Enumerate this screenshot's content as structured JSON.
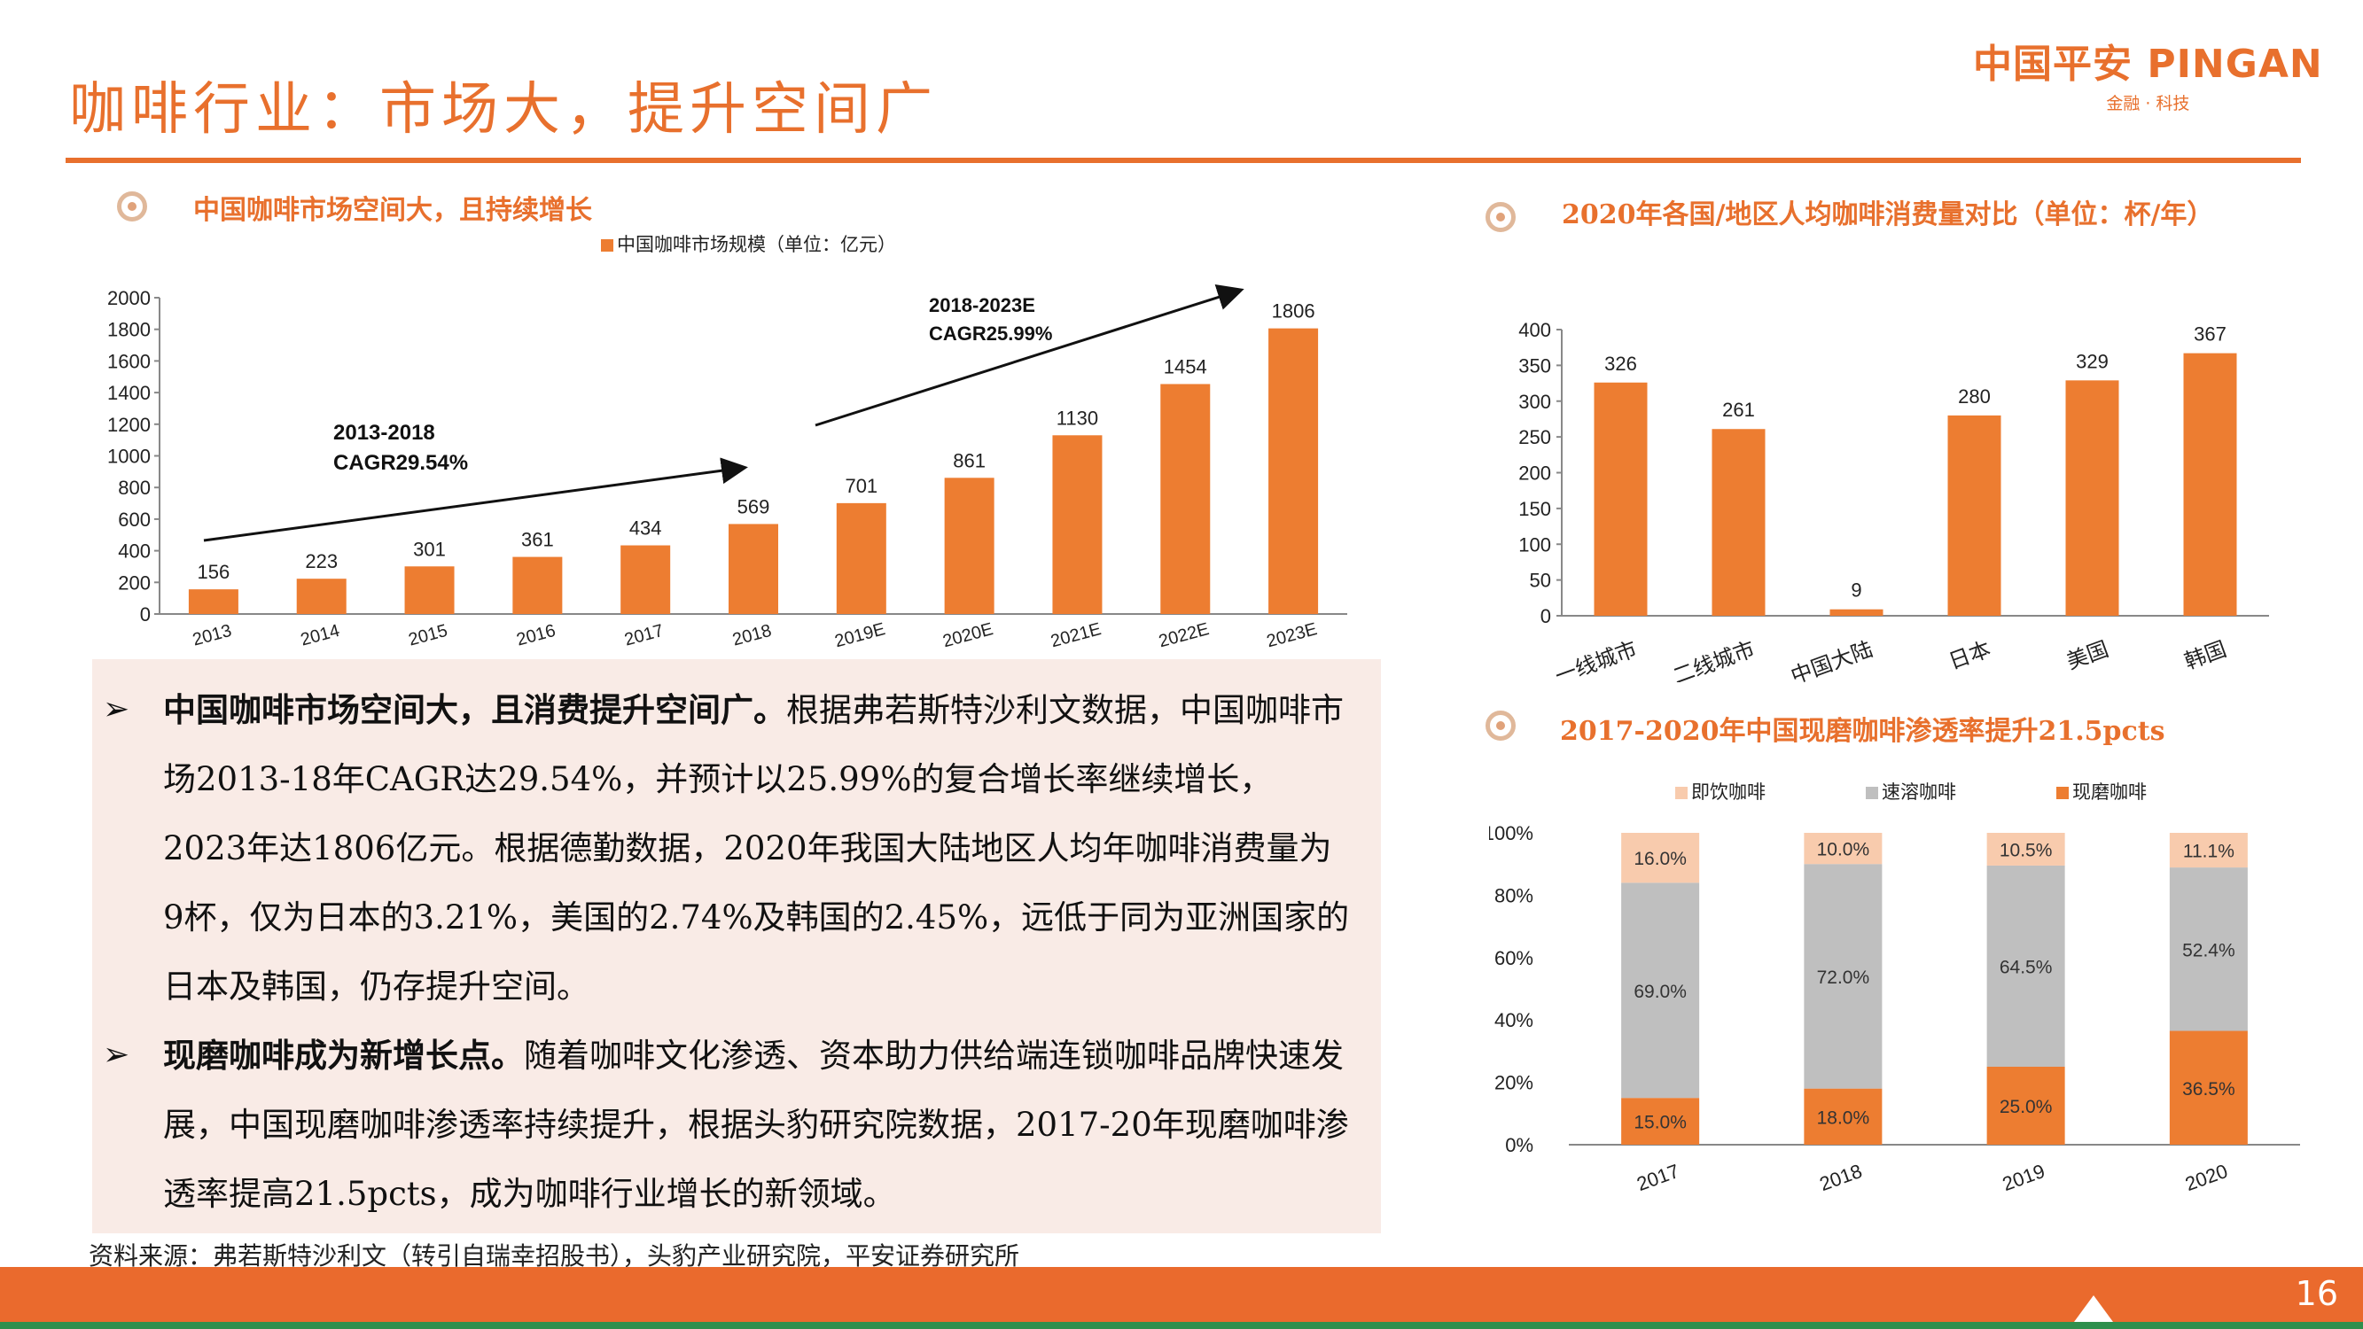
{
  "header": {
    "title": "咖啡行业：市场大，提升空间广",
    "logo_main": "中国平安 PINGAN",
    "logo_sub": "金融 · 科技"
  },
  "sections": {
    "chart1_title": "中国咖啡市场空间大，且持续增长",
    "chart2_title": "2020年各国/地区人均咖啡消费量对比（单位：杯/年）",
    "chart3_title": "2017-2020年中国现磨咖啡渗透率提升21.5pcts"
  },
  "body": {
    "bullet1_bold": "中国咖啡市场空间大，且消费提升空间广。",
    "bullet1_text": "根据弗若斯特沙利文数据，中国咖啡市场2013-18年CAGR达29.54%，并预计以25.99%的复合增长率继续增长，2023年达1806亿元。根据德勤数据，2020年我国大陆地区人均年咖啡消费量为9杯，仅为日本的3.21%，美国的2.74%及韩国的2.45%，远低于同为亚洲国家的日本及韩国，仍存提升空间。",
    "bullet2_bold": "现磨咖啡成为新增长点。",
    "bullet2_text": "随着咖啡文化渗透、资本助力供给端连锁咖啡品牌快速发展，中国现磨咖啡渗透率持续提升，根据头豹研究院数据，2017-20年现磨咖啡渗透率提高21.5pcts，成为咖啡行业增长的新领域。",
    "source": "资料来源：弗若斯特沙利文（转引自瑞幸招股书），头豹产业研究院，平安证券研究所"
  },
  "footer": {
    "page": "16"
  },
  "chart_data": [
    {
      "type": "bar",
      "legend": [
        "中国咖啡市场规模（单位：亿元）"
      ],
      "categories": [
        "2013",
        "2014",
        "2015",
        "2016",
        "2017",
        "2018",
        "2019E",
        "2020E",
        "2021E",
        "2022E",
        "2023E"
      ],
      "values": [
        156,
        223,
        301,
        361,
        434,
        569,
        701,
        861,
        1130,
        1454,
        1806
      ],
      "ylim": [
        0,
        2000
      ],
      "yticks": [
        0,
        200,
        400,
        600,
        800,
        1000,
        1200,
        1400,
        1600,
        1800,
        2000
      ],
      "annotations": [
        {
          "line1": "2013-2018",
          "line2": "CAGR29.54%"
        },
        {
          "line1": "2018-2023E",
          "line2": "CAGR25.99%"
        }
      ],
      "color": "#ed7d31"
    },
    {
      "type": "bar",
      "categories": [
        "一线城市",
        "二线城市",
        "中国大陆",
        "日本",
        "美国",
        "韩国"
      ],
      "values": [
        326,
        261,
        9,
        280,
        329,
        367
      ],
      "ylim": [
        0,
        400
      ],
      "yticks": [
        0,
        50,
        100,
        150,
        200,
        250,
        300,
        350,
        400
      ],
      "color": "#ed7d31"
    },
    {
      "type": "bar",
      "stacked": true,
      "categories": [
        "2017",
        "2018",
        "2019",
        "2020"
      ],
      "series": [
        {
          "name": "现磨咖啡",
          "values": [
            15.0,
            18.0,
            25.0,
            36.5
          ],
          "labels": [
            "15.0%",
            "18.0%",
            "25.0%",
            "36.5%"
          ],
          "color": "#ed7d31"
        },
        {
          "name": "速溶咖啡",
          "values": [
            69.0,
            72.0,
            64.5,
            52.4
          ],
          "labels": [
            "69.0%",
            "72.0%",
            "64.5%",
            "52.4%"
          ],
          "color": "#bfbfbf"
        },
        {
          "name": "即饮咖啡",
          "values": [
            16.0,
            10.0,
            10.5,
            11.1
          ],
          "labels": [
            "16.0%",
            "10.0%",
            "10.5%",
            "11.1%"
          ],
          "color": "#f8cbad"
        }
      ],
      "legend_order": [
        "即饮咖啡",
        "速溶咖啡",
        "现磨咖啡"
      ],
      "yticks": [
        "0%",
        "20%",
        "40%",
        "60%",
        "80%",
        "100%"
      ],
      "ylim": [
        0,
        100
      ]
    }
  ]
}
